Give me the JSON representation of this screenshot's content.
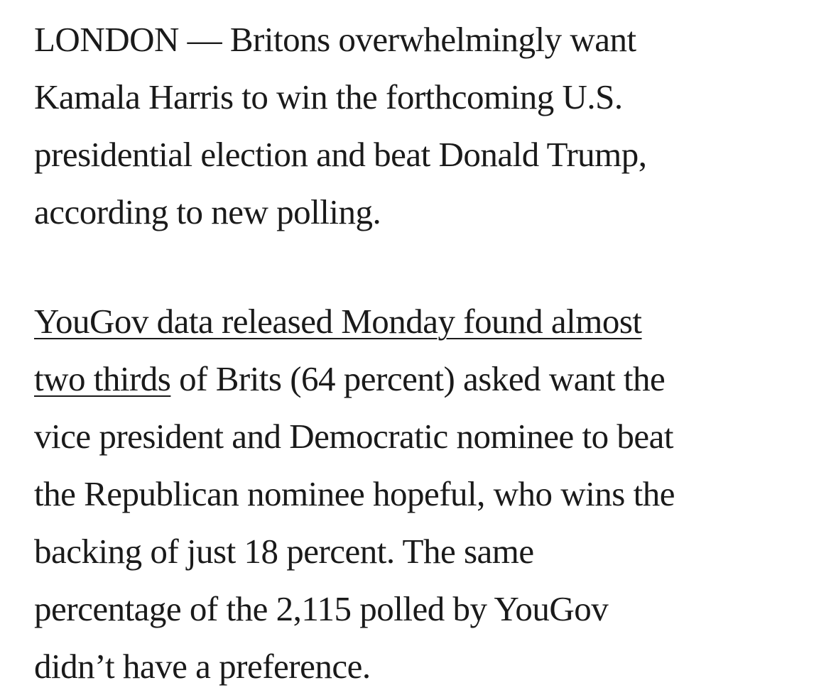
{
  "article": {
    "paragraph1": {
      "line1": "LONDON — Britons overwhelmingly want",
      "line2": "Kamala Harris to win the forthcoming U.S.",
      "line3": "presidential election and beat Donald Trump,",
      "line4": "according to new polling."
    },
    "paragraph2": {
      "link_line1": "YouGov data released Monday found almost",
      "link_line2": "two thirds",
      "line2_rest": " of Brits (64 percent) asked want the",
      "line3": "vice president and Democratic nominee to beat",
      "line4": "the Republican nominee hopeful, who wins the",
      "line5": "backing of just 18 percent. The same",
      "line6": "percentage of the 2,115 polled by YouGov",
      "line7": "didn’t have a preference."
    }
  }
}
